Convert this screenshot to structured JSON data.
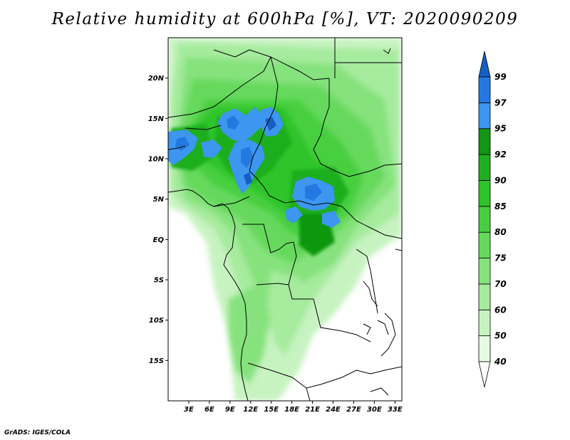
{
  "title": "Relative humidity at 600hPa [%], VT: 2020090209",
  "credit": "GrADS: IGES/COLA",
  "map": {
    "lon_range": [
      0,
      34
    ],
    "lat_range": [
      -20,
      25
    ],
    "lat_ticks": [
      "20N",
      "15N",
      "10N",
      "5N",
      "EQ",
      "5S",
      "10S",
      "15S"
    ],
    "lat_tick_values": [
      20,
      15,
      10,
      5,
      0,
      -5,
      -10,
      -15
    ],
    "lon_ticks": [
      "3E",
      "6E",
      "9E",
      "12E",
      "15E",
      "18E",
      "21E",
      "24E",
      "27E",
      "30E",
      "33E"
    ],
    "lon_tick_values": [
      3,
      6,
      9,
      12,
      15,
      18,
      21,
      24,
      27,
      30,
      33
    ],
    "region": "Central Africa"
  },
  "colorbar": {
    "levels": [
      "40",
      "50",
      "60",
      "70",
      "75",
      "80",
      "85",
      "90",
      "92",
      "95",
      "97",
      "99"
    ],
    "colors": [
      "#e6fbe3",
      "#c7f3c1",
      "#a6eb9e",
      "#86e27d",
      "#66d95d",
      "#47cf3f",
      "#2ec42a",
      "#1fae1f",
      "#119711",
      "#3d96f0",
      "#2479e0",
      "#155fc4"
    ],
    "below_color": "#ffffff",
    "above_color": "#155fc4"
  }
}
